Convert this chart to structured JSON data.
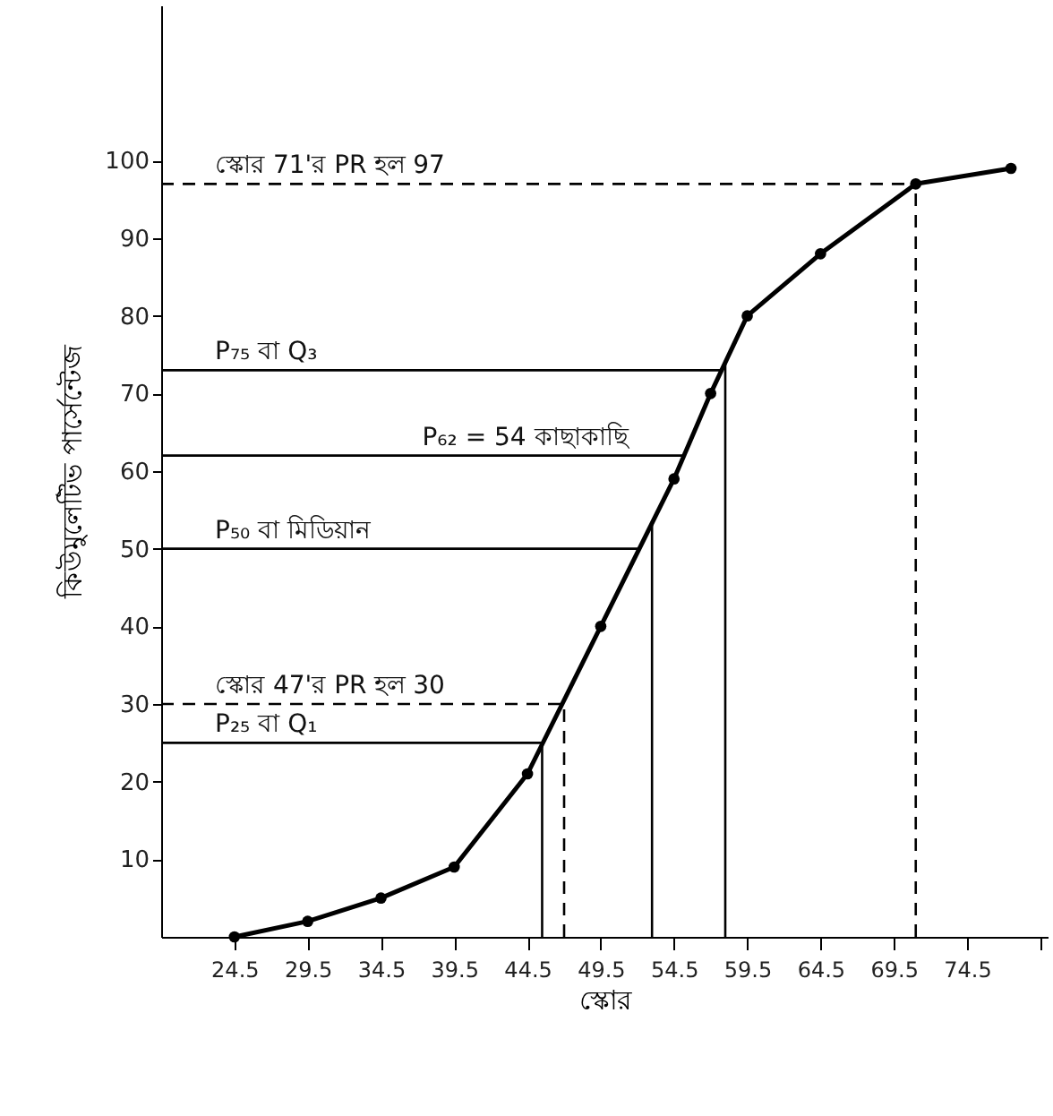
{
  "chart_data": {
    "type": "line",
    "xlabel": "স্কোর",
    "ylabel": "কিউমুলেটিভ পার্সেন্টেজ",
    "x": [
      24.5,
      29.5,
      34.5,
      39.5,
      44.5,
      49.5,
      54.5,
      57,
      59.5,
      64.5,
      71,
      77.5
    ],
    "series": [
      {
        "color": "#000000",
        "values": [
          0,
          2,
          5,
          9,
          21,
          40,
          59,
          70,
          80,
          88,
          97,
          99
        ]
      }
    ],
    "marker": "circle",
    "line_style": "solid",
    "grid": false,
    "annotations": [
      {
        "text": "P₆₂ = 54 কাছাকাছি",
        "x": 54,
        "y": 62
      }
    ],
    "xlim": [
      19.5,
      80
    ],
    "ylim": [
      0,
      120
    ],
    "xticks": [
      24.5,
      29.5,
      34.5,
      39.5,
      44.5,
      49.5,
      54.5,
      59.5,
      64.5,
      69.5,
      74.5,
      {
        "value": 79.5,
        "label": null
      }
    ],
    "yticks": [
      10,
      20,
      30,
      40,
      50,
      60,
      70,
      80,
      90,
      100
    ],
    "ref_lines": [
      {
        "axis": "y",
        "value": 97,
        "label": "স্কোর 71'র PR হল 97",
        "line_style": "dashed"
      },
      {
        "axis": "y",
        "value": 73,
        "label": "P₇₅ বা Q₃",
        "line_style": "solid"
      },
      {
        "axis": "y",
        "value": 62,
        "line_style": "solid"
      },
      {
        "axis": "y",
        "value": 50,
        "label": "P₅₀ বা মিডিয়ান",
        "line_style": "solid"
      },
      {
        "axis": "y",
        "value": 30,
        "label": "স্কোর 47'র PR হল 30",
        "line_style": "dashed"
      },
      {
        "axis": "y",
        "value": 25,
        "label": "P₂₅ বা Q₁",
        "line_style": "solid"
      },
      {
        "axis": "x",
        "value": 71,
        "line_style": "dashed"
      },
      {
        "axis": "x",
        "value": 58,
        "line_style": "solid"
      },
      {
        "axis": "x",
        "value": 53,
        "line_style": "solid"
      },
      {
        "axis": "x",
        "value": 47,
        "line_style": "dashed"
      },
      {
        "axis": "x",
        "value": 45.5,
        "line_style": "solid"
      }
    ]
  }
}
